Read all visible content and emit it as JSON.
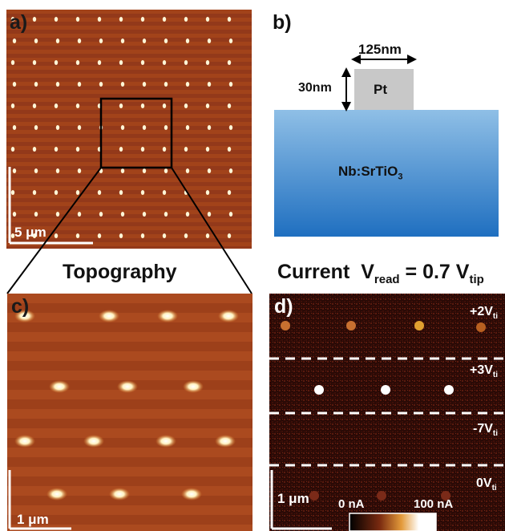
{
  "panel_a": {
    "label": "a)",
    "scale": "5 μm"
  },
  "panel_b": {
    "label": "b)",
    "width_label": "125nm",
    "height_label": "30nm",
    "electrode": "Pt",
    "substrate_main": "Nb:SrTiO",
    "substrate_sub": "3"
  },
  "titles": {
    "topography": "Topography",
    "current_word": "Current",
    "v_main": "V",
    "v_sub": "read",
    "equals": "= 0.7 V",
    "tip_sub": "tip"
  },
  "panel_c": {
    "label": "c)",
    "scale": "1 μm"
  },
  "panel_d": {
    "label": "d)",
    "scale": "1 μm",
    "rows": [
      {
        "v": "+2V",
        "sub": "ti"
      },
      {
        "v": "+3V",
        "sub": "ti"
      },
      {
        "v": "-7V",
        "sub": "ti"
      },
      {
        "v": "0V",
        "sub": "ti"
      }
    ],
    "colorbar_min": "0 nA",
    "colorbar_max": "100 nA"
  },
  "colors": {
    "topo_bg": "#9a3c14",
    "current_bg": "#2a0a06",
    "pt_gray": "#c8c8c8",
    "substrate_top": "#8fbfe6",
    "substrate_bottom": "#1f6fc0"
  }
}
